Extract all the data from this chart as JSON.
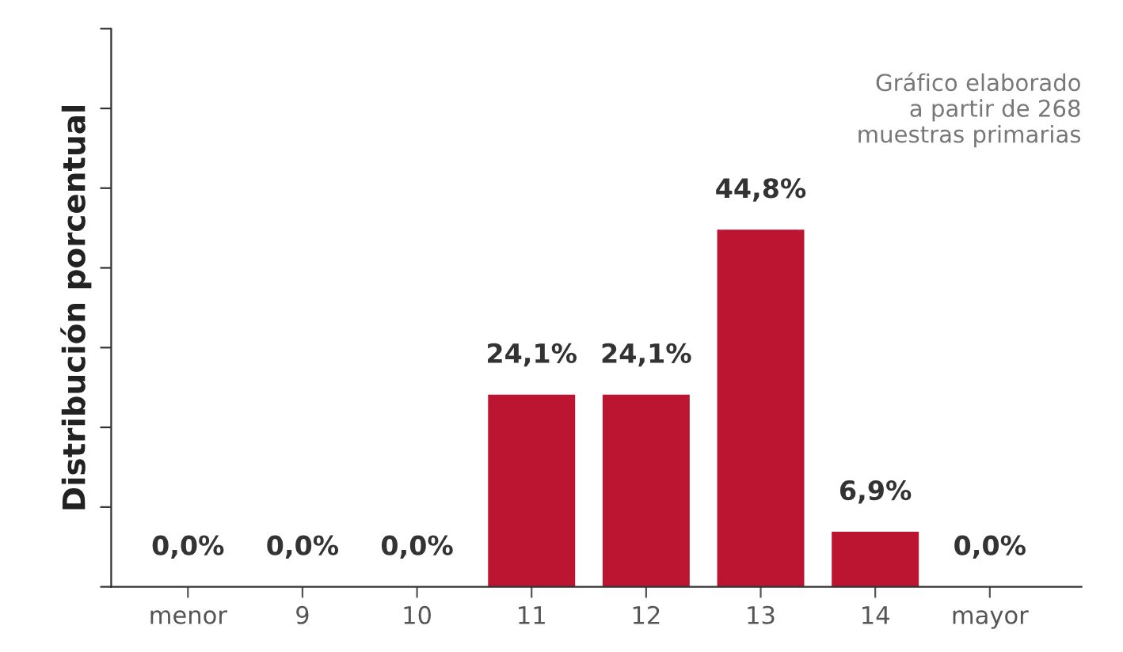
{
  "chart_data": {
    "type": "bar",
    "ylabel": "Distribución porcentual",
    "categories": [
      "menor",
      "9",
      "10",
      "11",
      "12",
      "13",
      "14",
      "mayor"
    ],
    "values": [
      0.0,
      0.0,
      0.0,
      24.1,
      24.1,
      44.8,
      6.9,
      0.0
    ],
    "value_labels": [
      "0,0%",
      "0,0%",
      "0,0%",
      "24,1%",
      "24,1%",
      "44,8%",
      "6,9%",
      "0,0%"
    ],
    "color": "#bc1532",
    "ylim": [
      0,
      70
    ],
    "yticks": [
      {
        "value": 0,
        "label": null
      },
      {
        "value": 10,
        "label": null
      },
      {
        "value": 20,
        "label": null
      },
      {
        "value": 30,
        "label": null
      },
      {
        "value": 40,
        "label": null
      },
      {
        "value": 50,
        "label": null
      },
      {
        "value": 60,
        "label": null
      },
      {
        "value": 70,
        "label": null
      }
    ],
    "tick_labels": "x",
    "grid": false,
    "legend": false,
    "annotations": [
      "Gráfico elaborado\na partir de 268\nmuestras primarias"
    ]
  }
}
